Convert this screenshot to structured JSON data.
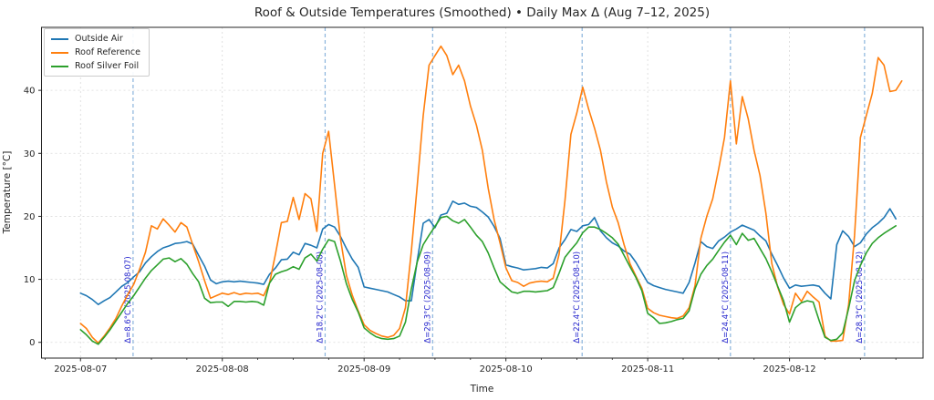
{
  "chart_data": {
    "type": "line",
    "title": "Roof & Outside Temperatures (Smoothed) • Daily Max Δ (Aug 7–12, 2025)",
    "xlabel": "Time",
    "ylabel": "Temperature [°C]",
    "x_unit": "hours since 2025-08-07 00:00",
    "x_step_hours": 1,
    "xlim_hours": [
      -6.6,
      142.6
    ],
    "ylim": [
      -2.5,
      50
    ],
    "y_ticks": [
      0,
      10,
      20,
      30,
      40
    ],
    "x_ticks": [
      {
        "t": 0,
        "label": "2025-08-07"
      },
      {
        "t": 24,
        "label": "2025-08-08"
      },
      {
        "t": 48,
        "label": "2025-08-09"
      },
      {
        "t": 72,
        "label": "2025-08-10"
      },
      {
        "t": 96,
        "label": "2025-08-11"
      },
      {
        "t": 120,
        "label": "2025-08-12"
      }
    ],
    "x_minor_tick_hours": 6,
    "grid": {
      "show": true,
      "color": "#d9d9d9",
      "dash": "2 3"
    },
    "legend_position": "upper left",
    "series": [
      {
        "name": "Outside Air",
        "color": "#1f77b4",
        "start_hour": 0,
        "values": [
          7.8,
          7.4,
          6.8,
          6.0,
          6.6,
          7.1,
          8.0,
          8.9,
          9.5,
          10.4,
          11.2,
          12.6,
          13.6,
          14.4,
          15.0,
          15.3,
          15.7,
          15.8,
          16.0,
          15.6,
          13.8,
          12.1,
          9.9,
          9.3,
          9.6,
          9.7,
          9.6,
          9.7,
          9.6,
          9.5,
          9.4,
          9.2,
          10.8,
          11.8,
          13.1,
          13.2,
          14.3,
          13.9,
          15.7,
          15.4,
          15.0,
          18.0,
          18.7,
          18.3,
          16.8,
          14.9,
          13.2,
          11.9,
          8.8,
          8.6,
          8.4,
          8.2,
          8.0,
          7.6,
          7.2,
          6.6,
          6.6,
          13.0,
          18.9,
          19.5,
          18.2,
          20.2,
          20.5,
          22.4,
          21.9,
          22.1,
          21.6,
          21.4,
          20.7,
          19.9,
          18.4,
          16.5,
          12.3,
          12.0,
          11.8,
          11.5,
          11.6,
          11.7,
          11.9,
          11.8,
          12.5,
          15.0,
          16.3,
          17.9,
          17.6,
          18.5,
          18.7,
          19.8,
          17.7,
          16.6,
          15.8,
          15.3,
          14.5,
          14.0,
          12.7,
          11.1,
          9.5,
          9.0,
          8.7,
          8.4,
          8.2,
          8.0,
          7.8,
          9.5,
          12.6,
          16.0,
          15.2,
          14.9,
          16.1,
          16.7,
          17.5,
          18.0,
          18.6,
          18.2,
          17.8,
          16.9,
          16.1,
          14.0,
          12.2,
          10.2,
          8.6,
          9.1,
          8.9,
          9.0,
          9.1,
          8.9,
          7.8,
          6.9,
          15.5,
          17.7,
          16.8,
          15.2,
          15.8,
          17.2,
          18.2,
          18.9,
          19.8,
          21.2,
          19.6
        ]
      },
      {
        "name": "Roof Reference",
        "color": "#ff7f0e",
        "start_hour": 0,
        "values": [
          3.0,
          2.2,
          0.8,
          -0.1,
          1.0,
          2.3,
          3.8,
          5.8,
          7.6,
          9.2,
          11.6,
          14.3,
          18.5,
          18.0,
          19.6,
          18.6,
          17.5,
          19.0,
          18.3,
          15.5,
          12.8,
          9.8,
          7.0,
          7.4,
          7.8,
          7.6,
          7.9,
          7.6,
          7.8,
          7.7,
          7.8,
          7.4,
          9.4,
          14.0,
          19.0,
          19.2,
          23.0,
          19.5,
          23.6,
          22.8,
          17.6,
          30.0,
          33.5,
          25.0,
          16.4,
          10.6,
          7.5,
          5.0,
          2.8,
          1.9,
          1.4,
          1.0,
          0.8,
          1.1,
          2.2,
          5.5,
          14.5,
          25.0,
          36.0,
          44.0,
          45.5,
          47.0,
          45.5,
          42.5,
          44.0,
          41.5,
          37.5,
          34.5,
          30.5,
          24.5,
          19.5,
          15.8,
          11.8,
          9.8,
          9.5,
          8.9,
          9.4,
          9.6,
          9.7,
          9.6,
          10.2,
          14.0,
          22.5,
          33.0,
          36.4,
          40.5,
          37.0,
          34.0,
          30.5,
          25.5,
          21.5,
          19.0,
          15.5,
          12.5,
          10.5,
          8.6,
          5.4,
          4.7,
          4.3,
          4.1,
          3.9,
          3.8,
          4.2,
          5.5,
          9.0,
          16.5,
          20.0,
          22.8,
          27.5,
          32.5,
          41.5,
          31.5,
          39.0,
          35.5,
          30.5,
          26.5,
          20.5,
          12.5,
          8.8,
          6.0,
          4.5,
          7.8,
          6.5,
          8.1,
          7.2,
          6.4,
          1.0,
          0.2,
          0.2,
          0.3,
          6.0,
          17.0,
          32.5,
          36.0,
          39.5,
          45.2,
          44.0,
          39.8,
          40.0,
          41.5
        ]
      },
      {
        "name": "Roof Silver Foil",
        "color": "#2ca02c",
        "start_hour": 0,
        "values": [
          2.0,
          1.2,
          0.2,
          -0.3,
          0.8,
          2.0,
          3.4,
          4.8,
          6.2,
          7.4,
          8.8,
          10.2,
          11.4,
          12.3,
          13.2,
          13.4,
          12.8,
          13.3,
          12.4,
          10.9,
          9.6,
          7.0,
          6.3,
          6.4,
          6.4,
          5.7,
          6.5,
          6.5,
          6.4,
          6.5,
          6.4,
          5.9,
          9.4,
          10.8,
          11.2,
          11.5,
          12.0,
          11.6,
          13.4,
          14.0,
          12.9,
          14.8,
          16.3,
          16.0,
          12.9,
          9.3,
          6.8,
          4.8,
          2.3,
          1.5,
          0.9,
          0.6,
          0.5,
          0.6,
          1.0,
          3.2,
          8.5,
          12.8,
          15.5,
          17.0,
          18.4,
          19.8,
          20.0,
          19.3,
          18.9,
          19.5,
          18.3,
          17.0,
          16.0,
          14.2,
          11.8,
          9.6,
          8.8,
          8.0,
          7.8,
          8.1,
          8.1,
          8.0,
          8.1,
          8.2,
          8.7,
          11.0,
          13.5,
          14.7,
          15.8,
          17.4,
          18.3,
          18.3,
          17.9,
          17.3,
          16.6,
          15.6,
          13.8,
          12.0,
          10.3,
          8.2,
          4.6,
          3.9,
          3.0,
          3.1,
          3.3,
          3.6,
          3.8,
          5.0,
          8.5,
          10.8,
          12.2,
          13.2,
          14.6,
          15.9,
          17.0,
          15.5,
          17.3,
          16.2,
          16.5,
          14.9,
          13.3,
          11.2,
          8.9,
          6.6,
          3.2,
          5.5,
          6.3,
          6.6,
          6.4,
          3.5,
          0.8,
          0.3,
          0.5,
          1.5,
          5.4,
          9.8,
          12.2,
          14.2,
          15.7,
          16.6,
          17.3,
          17.9,
          18.5
        ]
      }
    ],
    "annotations": [
      {
        "t_hours": 8.9,
        "label": "Δ=8.6°C (2025-08-07)"
      },
      {
        "t_hours": 41.4,
        "label": "Δ=18.2°C (2025-08-08)"
      },
      {
        "t_hours": 59.6,
        "label": "Δ=29.3°C (2025-08-09)"
      },
      {
        "t_hours": 84.9,
        "label": "Δ=22.4°C (2025-08-10)"
      },
      {
        "t_hours": 110.0,
        "label": "Δ=24.4°C (2025-08-11)"
      },
      {
        "t_hours": 132.7,
        "label": "Δ=28.3°C (2025-08-12)"
      }
    ],
    "annotation_style": {
      "line_color": "#8ab4dc",
      "line_dash": "4 3",
      "text_color": "#2222cc"
    },
    "axes_style": {
      "spine_color": "#262626",
      "tick_color": "#262626",
      "label_color": "#262626"
    }
  }
}
